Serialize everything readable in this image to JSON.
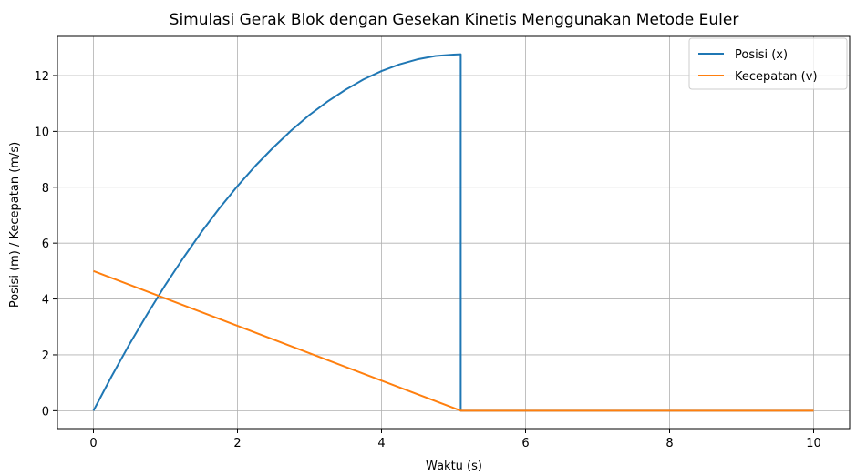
{
  "chart_data": {
    "type": "line",
    "title": "Simulasi Gerak Blok dengan Gesekan Kinetis Menggunakan Metode Euler",
    "xlabel": "Waktu (s)",
    "ylabel": "Posisi (m) / Kecepatan (m/s)",
    "xlim": [
      -0.5,
      10.5
    ],
    "ylim": [
      -0.64,
      13.4
    ],
    "xticks": [
      0,
      2,
      4,
      6,
      8,
      10
    ],
    "xtick_labels": [
      "0",
      "2",
      "4",
      "6",
      "8",
      "10"
    ],
    "yticks": [
      0,
      2,
      4,
      6,
      8,
      10,
      12
    ],
    "ytick_labels": [
      "0",
      "2",
      "4",
      "6",
      "8",
      "10",
      "12"
    ],
    "grid": true,
    "legend_position": "top-right",
    "colors": {
      "position": "#1f77b4",
      "velocity": "#ff7f0e",
      "grid": "#b0b0b0",
      "axis": "#000000"
    },
    "series": [
      {
        "name": "Posisi (x)",
        "x": [
          0,
          0.25,
          0.5,
          0.75,
          1,
          1.25,
          1.5,
          1.75,
          2,
          2.25,
          2.5,
          2.75,
          3,
          3.25,
          3.5,
          3.75,
          4,
          4.25,
          4.5,
          4.75,
          5,
          5.1,
          5.1,
          10
        ],
        "y": [
          0,
          1.22,
          2.38,
          3.47,
          4.51,
          5.48,
          6.4,
          7.25,
          8.04,
          8.77,
          9.43,
          10.04,
          10.59,
          11.07,
          11.49,
          11.86,
          12.16,
          12.4,
          12.58,
          12.7,
          12.75,
          12.76,
          0,
          0
        ]
      },
      {
        "name": "Kecepatan (v)",
        "x": [
          0,
          5.1,
          10
        ],
        "y": [
          5,
          0,
          0
        ]
      }
    ]
  }
}
